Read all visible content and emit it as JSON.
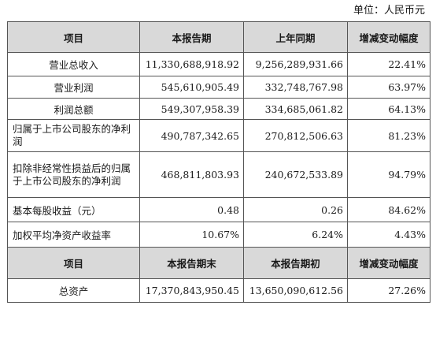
{
  "unit_label": "单位：人民币元",
  "header1": [
    "项目",
    "本报告期",
    "上年同期",
    "增减变动幅度"
  ],
  "rows": [
    {
      "label": "营业总收入",
      "current": "11,330,688,918.92",
      "previous": "9,256,289,931.66",
      "change": "22.41%"
    },
    {
      "label": "营业利润",
      "current": "545,610,905.49",
      "previous": "332,748,767.98",
      "change": "63.97%"
    },
    {
      "label": "利润总额",
      "current": "549,307,958.39",
      "previous": "334,685,061.82",
      "change": "64.13%"
    },
    {
      "label": "归属于上市公司股东的净利润",
      "current": "490,787,342.65",
      "previous": "270,812,506.63",
      "change": "81.23%"
    },
    {
      "label": "扣除非经常性损益后的归属于上市公司股东的净利润",
      "current": "468,811,803.93",
      "previous": "240,672,533.89",
      "change": "94.79%"
    },
    {
      "label": "基本每股收益（元）",
      "current": "0.48",
      "previous": "0.26",
      "change": "84.62%"
    },
    {
      "label": "加权平均净资产收益率",
      "current": "10.67%",
      "previous": "6.24%",
      "change": "4.43%"
    }
  ],
  "header2": [
    "项目",
    "本报告期末",
    "本报告期初",
    "增减变动幅度"
  ],
  "rows2": [
    {
      "label": "总资产",
      "current": "17,370,843,950.45",
      "previous": "13,650,090,612.56",
      "change": "27.26%"
    }
  ]
}
